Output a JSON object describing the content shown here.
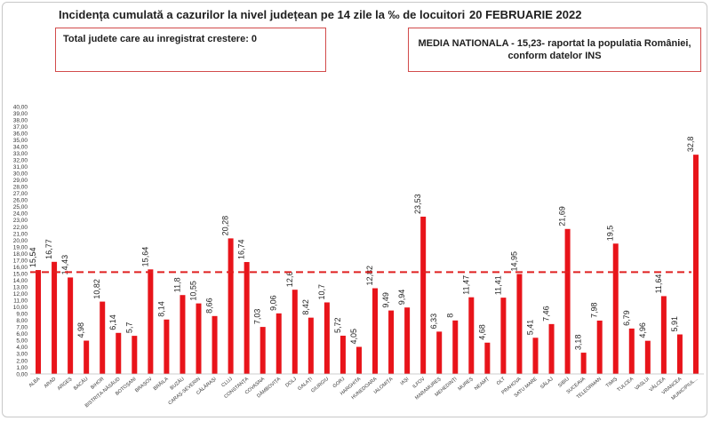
{
  "header": {
    "title": "Incidența cumulată a cazurilor la nivel județean pe 14 zile la ‰ de locuitori",
    "date": "20 FEBRUARIE 2022"
  },
  "boxes": {
    "left_text": "Total judete care au inregistrat crestere: 0",
    "right_line1": "MEDIA NATIONALA - 15,23-  raportat la populatia României,",
    "right_line2": "conform datelor INS"
  },
  "chart_data": {
    "type": "bar",
    "title": "Incidența cumulată a cazurilor la nivel județean pe 14 zile la ‰ de locuitori",
    "xlabel": "",
    "ylabel": "",
    "ylim": [
      0,
      40
    ],
    "ytick_step": 1,
    "ytick_labels": [
      "0,00",
      "1,00",
      "2,00",
      "3,00",
      "4,00",
      "5,00",
      "6,00",
      "7,00",
      "8,00",
      "9,00",
      "10,00",
      "11,00",
      "12,00",
      "13,00",
      "14,00",
      "15,00",
      "16,00",
      "17,00",
      "18,00",
      "19,00",
      "20,00",
      "21,00",
      "22,00",
      "23,00",
      "24,00",
      "25,00",
      "26,00",
      "27,00",
      "28,00",
      "29,00",
      "30,00",
      "31,00",
      "32,00",
      "33,00",
      "34,00",
      "35,00",
      "36,00",
      "37,00",
      "38,00",
      "39,00",
      "40,00"
    ],
    "reference_line": {
      "value": 15.23,
      "style": "dashed",
      "color": "#e02020"
    },
    "bar_color": "#e8141a",
    "grid": false,
    "categories": [
      "ALBA",
      "ARAD",
      "ARGEȘ",
      "BACĂU",
      "BIHOR",
      "BISTRIȚA-NĂSĂUD",
      "BOTOȘANI",
      "BRAȘOV",
      "BRĂILA",
      "BUZĂU",
      "CARAȘ-SEVERIN",
      "CĂLĂRAȘI",
      "CLUJ",
      "CONSTANȚA",
      "COVASNA",
      "DÂMBOVIȚA",
      "DOLJ",
      "GALAȚI",
      "GIURGIU",
      "GORJ",
      "HARGHITA",
      "HUNEDOARA",
      "IALOMIȚA",
      "IAȘI",
      "ILFOV",
      "MARAMUREȘ",
      "MEHEDINȚI",
      "MUREȘ",
      "NEAMȚ",
      "OLT",
      "PRAHOVA",
      "SATU MARE",
      "SĂLAJ",
      "SIBIU",
      "SUCEAVA",
      "TELEORMAN",
      "TIMIȘ",
      "TULCEA",
      "VASLUI",
      "VÂLCEA",
      "VRANCEA",
      "MUNICIPIUL..."
    ],
    "values": [
      15.54,
      16.77,
      14.43,
      4.98,
      10.82,
      6.14,
      5.7,
      15.64,
      8.14,
      11.8,
      10.55,
      8.66,
      20.28,
      16.74,
      7.03,
      9.06,
      12.6,
      8.42,
      10.7,
      5.72,
      4.05,
      12.82,
      9.49,
      9.94,
      23.53,
      6.33,
      8,
      11.47,
      4.68,
      11.41,
      14.95,
      5.41,
      7.46,
      21.69,
      3.18,
      7.98,
      19.5,
      6.79,
      4.96,
      11.64,
      5.91,
      32.8
    ],
    "value_labels": [
      "15,54",
      "16,77",
      "14,43",
      "4,98",
      "10,82",
      "6,14",
      "5,7",
      "15,64",
      "8,14",
      "11,8",
      "10,55",
      "8,66",
      "20,28",
      "16,74",
      "7,03",
      "9,06",
      "12,6",
      "8,42",
      "10,7",
      "5,72",
      "4,05",
      "12,82",
      "9,49",
      "9,94",
      "23,53",
      "6,33",
      "8",
      "11,47",
      "4,68",
      "11,41",
      "14,95",
      "5,41",
      "7,46",
      "21,69",
      "3,18",
      "7,98",
      "19,5",
      "6,79",
      "4,96",
      "11,64",
      "5,91",
      "32,8"
    ]
  }
}
